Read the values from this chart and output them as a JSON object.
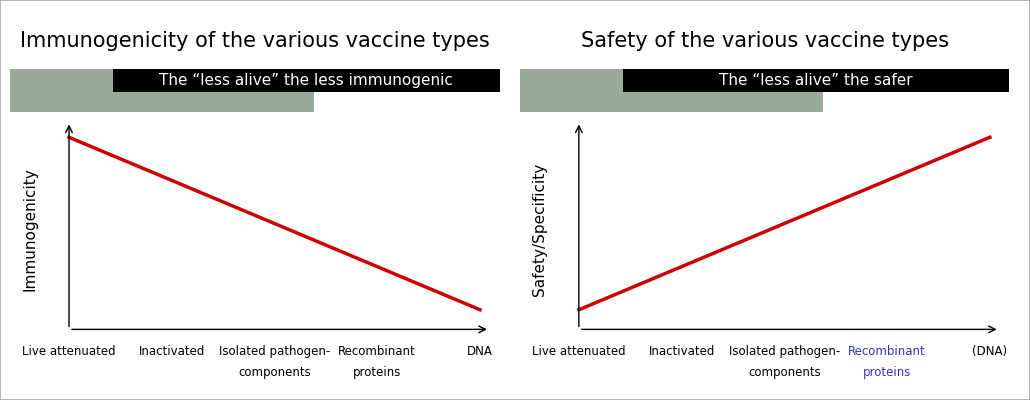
{
  "left_title": "Immunogenicity of the various vaccine types",
  "right_title": "Safety of the various vaccine types",
  "left_banner_text": "The “less alive” the less immunogenic",
  "right_banner_text": "The “less alive” the safer",
  "left_ylabel": "Immunogenicity",
  "right_ylabel": "Safety/Specificity",
  "categories_left": [
    "Live attenuated",
    "Inactivated",
    "Isolated pathogen-\ncomponents",
    "Recombinant\nproteins",
    "DNA"
  ],
  "categories_right": [
    "Live attenuated",
    "Inactivated",
    "Isolated pathogen-\ncomponents",
    "Recombinant\nproteins",
    "(DNA)"
  ],
  "line_color": "#cc0000",
  "line_width": 2.5,
  "background_color": "#ffffff",
  "banner_bg_color": "#000000",
  "banner_text_color": "#ffffff",
  "gray_block_color": "#9aaa9a",
  "title_fontsize": 15,
  "ylabel_fontsize": 11,
  "banner_fontsize": 11,
  "recombinant_color_right": "#3333bb",
  "outer_border_color": "#aaaaaa"
}
